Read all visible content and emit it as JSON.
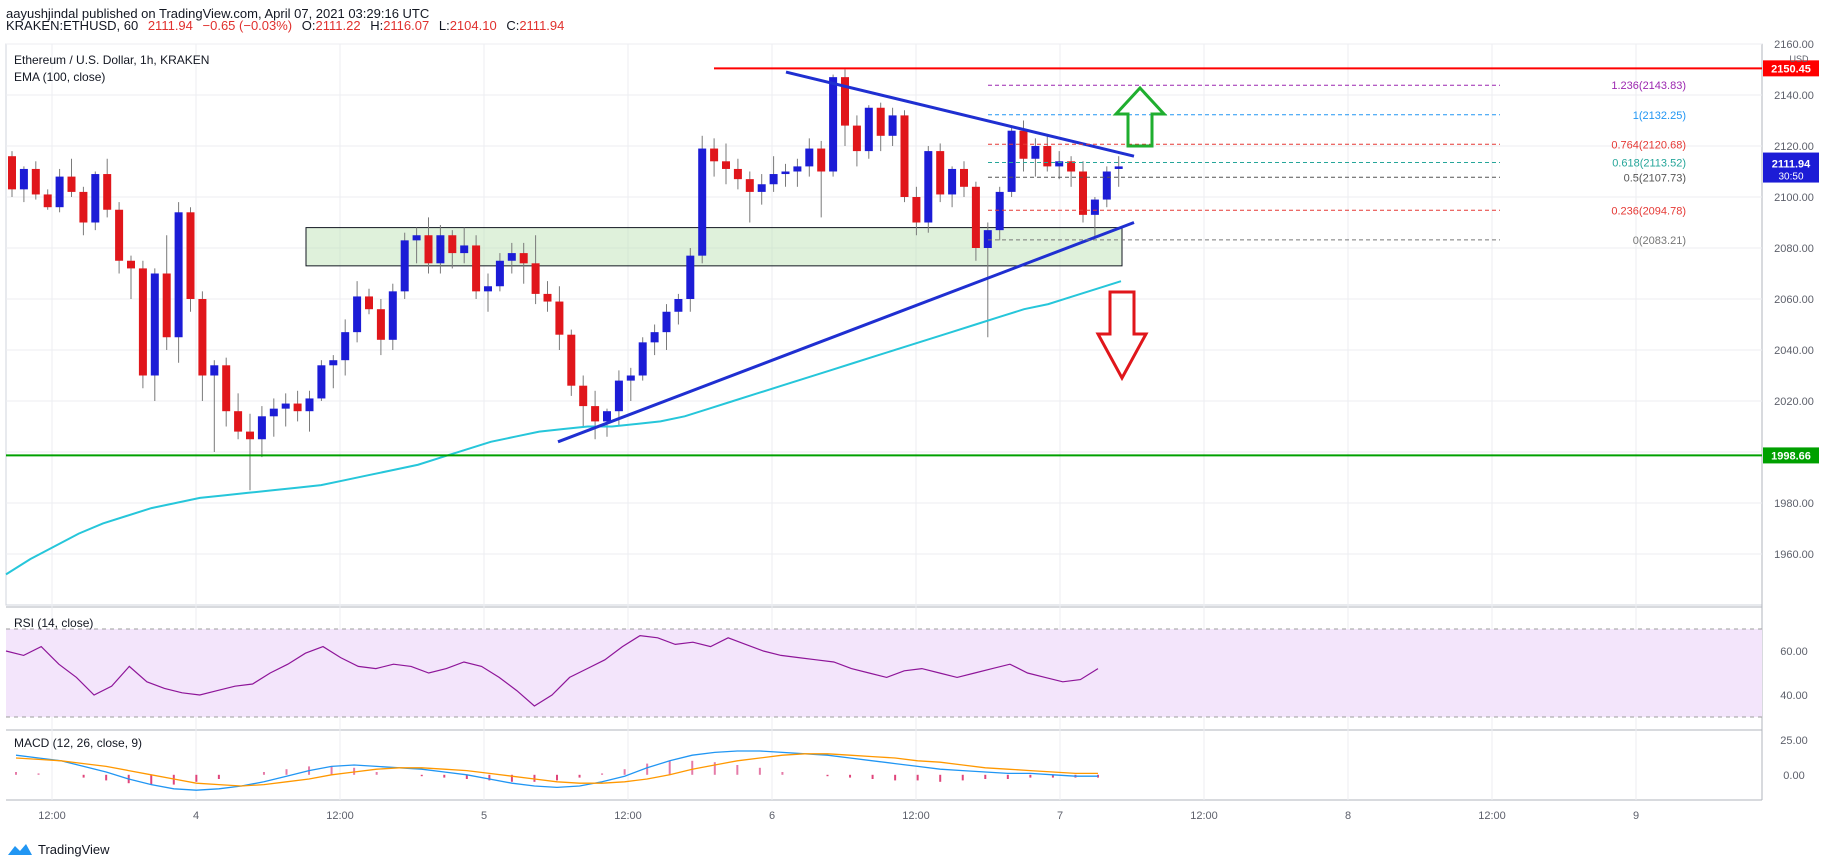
{
  "header": {
    "publisher": "aayushjindal published on TradingView.com, April 07, 2021 03:29:16 UTC",
    "symbol": "KRAKEN:ETHUSD, 60",
    "last": "2111.94",
    "change": "−0.65 (−0.03%)",
    "o_label": "O:",
    "o": "2111.22",
    "h_label": "H:",
    "h": "2116.07",
    "l_label": "L:",
    "l": "2104.10",
    "c_label": "C:",
    "c": "2111.94"
  },
  "footer": {
    "brand": "TradingView"
  },
  "colors": {
    "up": "#1c1cd6",
    "down": "#e0161b",
    "ema": "#26c6da",
    "rsi": "#8e1599",
    "macd": "#2196f3",
    "signal": "#ff9800",
    "resistance": "#ff0000",
    "support": "#00a000",
    "trend": "#1f2fd1"
  },
  "chart_data": [
    {
      "type": "candlestick",
      "title": "Ethereum / U.S. Dollar, 1h, KRAKEN",
      "indicator": "EMA (100, close)",
      "currency": "USD",
      "ylim": [
        1940,
        2160
      ],
      "y_ticks": [
        1960,
        1980,
        2000,
        2020,
        2040,
        2060,
        2080,
        2100,
        2120,
        2140,
        2160
      ],
      "x_ticks": [
        "12:00",
        "4",
        "12:00",
        "5",
        "12:00",
        "6",
        "12:00",
        "7",
        "12:00",
        "8",
        "12:00",
        "9"
      ],
      "grid": true,
      "price_labels": {
        "current": "2111.94",
        "countdown": "30:50",
        "resistance": "2150.45",
        "support": "1998.66"
      },
      "candles": [
        [
          2116,
          2118,
          2100,
          2103
        ],
        [
          2103,
          2112,
          2098,
          2111
        ],
        [
          2111,
          2114,
          2099,
          2101
        ],
        [
          2101,
          2103,
          2095,
          2096
        ],
        [
          2096,
          2111,
          2094,
          2108
        ],
        [
          2108,
          2115,
          2100,
          2102
        ],
        [
          2102,
          2104,
          2085,
          2090
        ],
        [
          2090,
          2110,
          2087,
          2109
        ],
        [
          2109,
          2115,
          2092,
          2095
        ],
        [
          2095,
          2098,
          2070,
          2075
        ],
        [
          2075,
          2077,
          2060,
          2072
        ],
        [
          2072,
          2075,
          2025,
          2030
        ],
        [
          2030,
          2072,
          2020,
          2070
        ],
        [
          2070,
          2085,
          2040,
          2045
        ],
        [
          2045,
          2098,
          2035,
          2094
        ],
        [
          2094,
          2096,
          2055,
          2060
        ],
        [
          2060,
          2063,
          2020,
          2030
        ],
        [
          2030,
          2036,
          2000,
          2034
        ],
        [
          2034,
          2037,
          2010,
          2016
        ],
        [
          2016,
          2023,
          2005,
          2008
        ],
        [
          2008,
          2015,
          1985,
          2005
        ],
        [
          2005,
          2018,
          1998,
          2014
        ],
        [
          2014,
          2021,
          2006,
          2017
        ],
        [
          2017,
          2023,
          2010,
          2019
        ],
        [
          2019,
          2024,
          2012,
          2016
        ],
        [
          2016,
          2024,
          2008,
          2021
        ],
        [
          2021,
          2036,
          2020,
          2034
        ],
        [
          2034,
          2038,
          2025,
          2036
        ],
        [
          2036,
          2052,
          2030,
          2047
        ],
        [
          2047,
          2067,
          2043,
          2061
        ],
        [
          2061,
          2064,
          2054,
          2056
        ],
        [
          2056,
          2060,
          2038,
          2044
        ],
        [
          2044,
          2066,
          2040,
          2063
        ],
        [
          2063,
          2086,
          2060,
          2083
        ],
        [
          2083,
          2088,
          2074,
          2085
        ],
        [
          2085,
          2092,
          2070,
          2074
        ],
        [
          2074,
          2089,
          2070,
          2085
        ],
        [
          2085,
          2087,
          2072,
          2078
        ],
        [
          2078,
          2088,
          2074,
          2081
        ],
        [
          2081,
          2085,
          2060,
          2063
        ],
        [
          2063,
          2070,
          2055,
          2065
        ],
        [
          2065,
          2078,
          2063,
          2075
        ],
        [
          2075,
          2082,
          2070,
          2078
        ],
        [
          2078,
          2082,
          2066,
          2074
        ],
        [
          2074,
          2085,
          2058,
          2062
        ],
        [
          2062,
          2067,
          2055,
          2059
        ],
        [
          2059,
          2065,
          2040,
          2046
        ],
        [
          2046,
          2048,
          2022,
          2026
        ],
        [
          2026,
          2030,
          2010,
          2018
        ],
        [
          2018,
          2024,
          2005,
          2012
        ],
        [
          2012,
          2017,
          2006,
          2016
        ],
        [
          2016,
          2032,
          2010,
          2028
        ],
        [
          2028,
          2033,
          2020,
          2030
        ],
        [
          2030,
          2045,
          2028,
          2043
        ],
        [
          2043,
          2050,
          2038,
          2047
        ],
        [
          2047,
          2058,
          2040,
          2055
        ],
        [
          2055,
          2062,
          2050,
          2060
        ],
        [
          2060,
          2080,
          2055,
          2077
        ],
        [
          2077,
          2124,
          2074,
          2119
        ],
        [
          2119,
          2123,
          2108,
          2114
        ],
        [
          2114,
          2121,
          2105,
          2111
        ],
        [
          2111,
          2115,
          2103,
          2107
        ],
        [
          2107,
          2110,
          2090,
          2102
        ],
        [
          2102,
          2109,
          2097,
          2105
        ],
        [
          2105,
          2116,
          2102,
          2109
        ],
        [
          2109,
          2113,
          2104,
          2110
        ],
        [
          2110,
          2115,
          2104,
          2112
        ],
        [
          2112,
          2123,
          2108,
          2119
        ],
        [
          2119,
          2122,
          2092,
          2110
        ],
        [
          2110,
          2148,
          2108,
          2147
        ],
        [
          2147,
          2150,
          2120,
          2128
        ],
        [
          2128,
          2132,
          2112,
          2118
        ],
        [
          2118,
          2136,
          2115,
          2135
        ],
        [
          2135,
          2137,
          2118,
          2124
        ],
        [
          2124,
          2135,
          2120,
          2132
        ],
        [
          2132,
          2134,
          2098,
          2100
        ],
        [
          2100,
          2104,
          2085,
          2090
        ],
        [
          2090,
          2120,
          2086,
          2118
        ],
        [
          2118,
          2121,
          2098,
          2101
        ],
        [
          2101,
          2112,
          2096,
          2111
        ],
        [
          2111,
          2114,
          2100,
          2104
        ],
        [
          2104,
          2106,
          2075,
          2080
        ],
        [
          2080,
          2090,
          2045,
          2087
        ],
        [
          2087,
          2104,
          2083,
          2102
        ],
        [
          2102,
          2128,
          2100,
          2126
        ],
        [
          2126,
          2130,
          2110,
          2115
        ],
        [
          2115,
          2123,
          2108,
          2120
        ],
        [
          2120,
          2124,
          2110,
          2112
        ],
        [
          2112,
          2118,
          2107,
          2114
        ],
        [
          2114,
          2116,
          2104,
          2110
        ],
        [
          2110,
          2114,
          2090,
          2093
        ],
        [
          2093,
          2100,
          2084,
          2099
        ],
        [
          2099,
          2112,
          2096,
          2110
        ],
        [
          2111,
          2116,
          2104,
          2112
        ]
      ],
      "ema_100": [
        1952,
        1958,
        1963,
        1968,
        1972,
        1975,
        1978,
        1980,
        1982,
        1983,
        1984,
        1985,
        1986,
        1987,
        1989,
        1991,
        1993,
        1995,
        1998,
        2001,
        2004,
        2006,
        2008,
        2009,
        2010,
        2010,
        2011,
        2012,
        2014,
        2017,
        2020,
        2023,
        2026,
        2029,
        2032,
        2035,
        2038,
        2041,
        2044,
        2047,
        2050,
        2053,
        2056,
        2058,
        2061,
        2064,
        2067
      ],
      "fibonacci": [
        {
          "level": "1.236",
          "value": 2143.83
        },
        {
          "level": "1",
          "value": 2132.25
        },
        {
          "level": "0.764",
          "value": 2120.68
        },
        {
          "level": "0.618",
          "value": 2113.52
        },
        {
          "level": "0.5",
          "value": 2107.73
        },
        {
          "level": "0.236",
          "value": 2094.78
        },
        {
          "level": "0",
          "value": 2083.21
        }
      ],
      "resistance": 2150.45,
      "support": 1998.66,
      "demand_zone": [
        2073,
        2088
      ],
      "trendline_upper": [
        [
          2149,
          69
        ],
        [
          2116,
          91
        ]
      ],
      "trendline_lower": [
        [
          2004,
          48
        ],
        [
          2090,
          94
        ]
      ]
    },
    {
      "type": "line",
      "title": "RSI (14, close)",
      "ylim": [
        25,
        80
      ],
      "y_ticks": [
        40,
        60
      ],
      "bands": [
        30,
        70
      ],
      "values": [
        60,
        58,
        62,
        54,
        48,
        40,
        44,
        53,
        46,
        43,
        41,
        40,
        42,
        44,
        45,
        50,
        54,
        59,
        62,
        57,
        53,
        52,
        54,
        53,
        50,
        52,
        55,
        53,
        48,
        42,
        35,
        40,
        48,
        52,
        56,
        62,
        67,
        66,
        63,
        64,
        62,
        66,
        63,
        60,
        58,
        57,
        56,
        55,
        52,
        50,
        48,
        51,
        52,
        50,
        48,
        50,
        52,
        54,
        50,
        48,
        46,
        47,
        52
      ]
    },
    {
      "type": "line",
      "title": "MACD (12, 26, close, 9)",
      "ylim": [
        -18,
        32
      ],
      "y_ticks": [
        0,
        25
      ],
      "macd": [
        14,
        12,
        10,
        6,
        2,
        -3,
        -7,
        -10,
        -11,
        -10,
        -8,
        -5,
        -1,
        3,
        6,
        7,
        6,
        5,
        4,
        2,
        0,
        -3,
        -6,
        -8,
        -9,
        -8,
        -5,
        -1,
        5,
        10,
        14,
        16,
        17,
        17,
        16,
        15,
        14,
        12,
        10,
        8,
        6,
        4,
        3,
        2,
        1,
        1,
        0,
        -1,
        -1
      ],
      "signal": [
        12,
        11,
        10,
        8,
        6,
        3,
        0,
        -3,
        -6,
        -7,
        -8,
        -7,
        -5,
        -3,
        0,
        2,
        4,
        5,
        5,
        4,
        3,
        1,
        -1,
        -3,
        -5,
        -6,
        -6,
        -5,
        -3,
        0,
        4,
        7,
        10,
        12,
        14,
        15,
        15,
        14,
        13,
        12,
        10,
        9,
        7,
        5,
        4,
        3,
        2,
        1,
        1
      ]
    }
  ]
}
